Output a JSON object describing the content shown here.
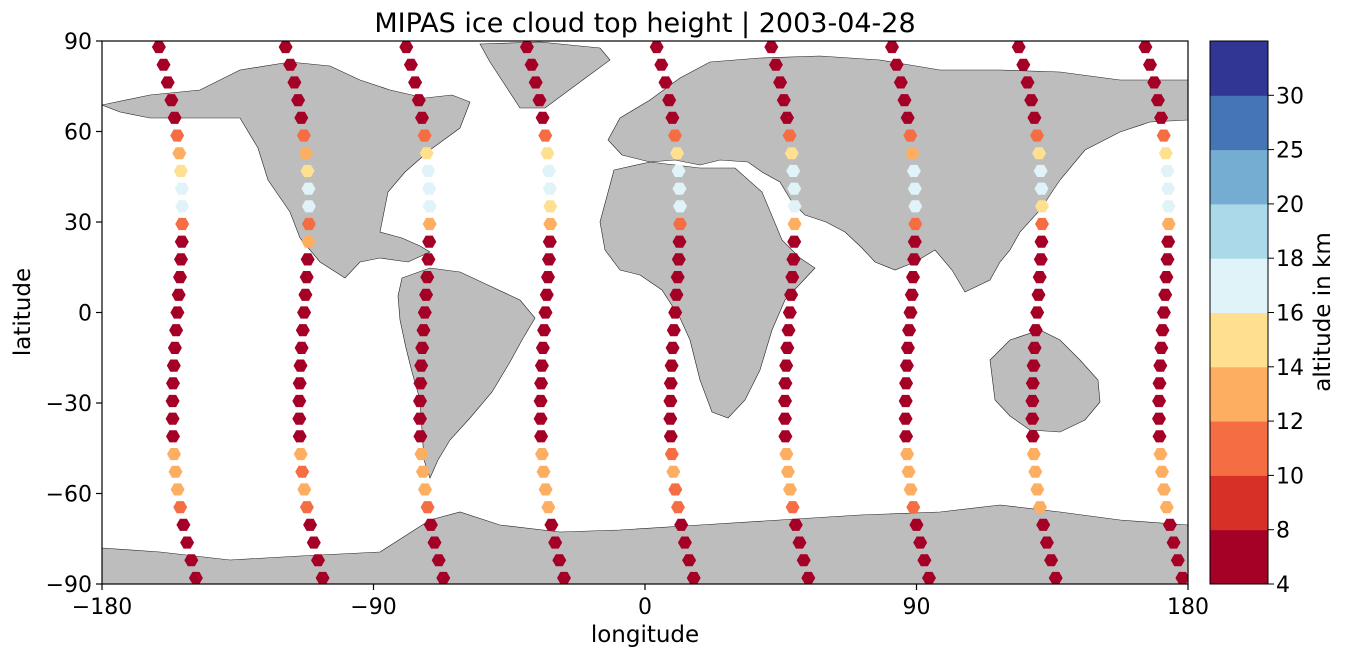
{
  "chart_data": {
    "type": "scatter",
    "title": "MIPAS ice cloud top height | 2003-04-28",
    "xlabel": "longitude",
    "ylabel": "latitude",
    "xlim": [
      -180,
      180
    ],
    "ylim": [
      -90,
      90
    ],
    "xticks": [
      -180,
      -90,
      0,
      90,
      180
    ],
    "yticks": [
      -90,
      -60,
      -30,
      0,
      30,
      60,
      90
    ],
    "xtick_labels": [
      "−180",
      "−90",
      "0",
      "90",
      "180"
    ],
    "ytick_labels": [
      "−90",
      "−60",
      "−30",
      "0",
      "30",
      "60",
      "90"
    ],
    "colorbar": {
      "label": "altitude in km",
      "bounds": [
        4,
        8,
        10,
        12,
        14,
        16,
        18,
        20,
        25,
        30
      ],
      "tick_labels": [
        "4",
        "8",
        "10",
        "12",
        "14",
        "16",
        "18",
        "20",
        "25",
        "30"
      ],
      "colors": [
        "#a50026",
        "#d73027",
        "#f46d43",
        "#fdae61",
        "#fee090",
        "#e0f3f8",
        "#abd9e9",
        "#74add1",
        "#4575b4",
        "#313695"
      ]
    },
    "land_color": "#bdbdbd",
    "marker": "hexagon",
    "tracks": [
      {
        "lon0": -155,
        "heights": [
          7,
          7,
          6,
          6,
          6,
          11,
          12,
          15,
          17,
          17,
          11,
          7,
          6,
          6,
          6,
          6,
          6,
          5,
          6,
          7,
          6,
          6,
          7,
          12,
          12,
          12,
          11,
          7,
          6,
          6,
          6
        ]
      },
      {
        "lon0": -113,
        "heights": [
          6,
          6,
          6,
          6,
          5,
          10,
          12,
          14,
          17,
          16,
          11,
          12,
          7,
          6,
          6,
          6,
          6,
          6,
          6,
          6,
          6,
          6,
          6,
          12,
          11,
          12,
          11,
          7,
          6,
          6,
          6
        ]
      },
      {
        "lon0": -73,
        "heights": [
          6,
          6,
          6,
          7,
          6,
          11,
          14,
          16,
          17,
          17,
          12,
          7,
          6,
          6,
          6,
          6,
          6,
          6,
          5,
          6,
          6,
          6,
          6,
          12,
          12,
          12,
          11,
          7,
          6,
          6,
          6
        ]
      },
      {
        "lon0": -33,
        "heights": [
          6,
          6,
          7,
          6,
          6,
          11,
          15,
          17,
          16,
          15,
          13,
          7,
          6,
          6,
          6,
          6,
          6,
          6,
          6,
          6,
          6,
          6,
          6,
          12,
          13,
          13,
          12,
          7,
          6,
          6,
          6
        ]
      },
      {
        "lon0": 10,
        "heights": [
          6,
          6,
          6,
          6,
          6,
          11,
          14,
          17,
          17,
          17,
          11,
          7,
          6,
          6,
          6,
          6,
          6,
          6,
          7,
          6,
          6,
          6,
          6,
          11,
          12,
          11,
          11,
          7,
          6,
          6,
          6
        ]
      },
      {
        "lon0": 48,
        "heights": [
          6,
          6,
          6,
          6,
          6,
          11,
          15,
          17,
          17,
          16,
          12,
          7,
          6,
          6,
          6,
          6,
          6,
          6,
          6,
          6,
          6,
          6,
          6,
          12,
          12,
          13,
          11,
          7,
          6,
          6,
          6
        ]
      },
      {
        "lon0": 88,
        "heights": [
          6,
          6,
          7,
          6,
          6,
          11,
          13,
          17,
          17,
          17,
          11,
          7,
          6,
          6,
          6,
          6,
          6,
          6,
          6,
          6,
          6,
          6,
          6,
          12,
          12,
          12,
          11,
          7,
          6,
          6,
          6
        ]
      },
      {
        "lon0": 130,
        "heights": [
          6,
          6,
          6,
          6,
          6,
          11,
          14,
          17,
          17,
          15,
          11,
          7,
          6,
          6,
          6,
          6,
          6,
          6,
          6,
          6,
          6,
          6,
          6,
          13,
          12,
          12,
          12,
          7,
          6,
          6,
          6
        ]
      },
      {
        "lon0": 172,
        "heights": [
          6,
          6,
          6,
          6,
          6,
          11,
          14,
          17,
          17,
          16,
          12,
          7,
          6,
          6,
          6,
          6,
          6,
          6,
          6,
          6,
          6,
          6,
          6,
          12,
          13,
          12,
          12,
          7,
          6,
          6,
          6
        ]
      }
    ]
  }
}
